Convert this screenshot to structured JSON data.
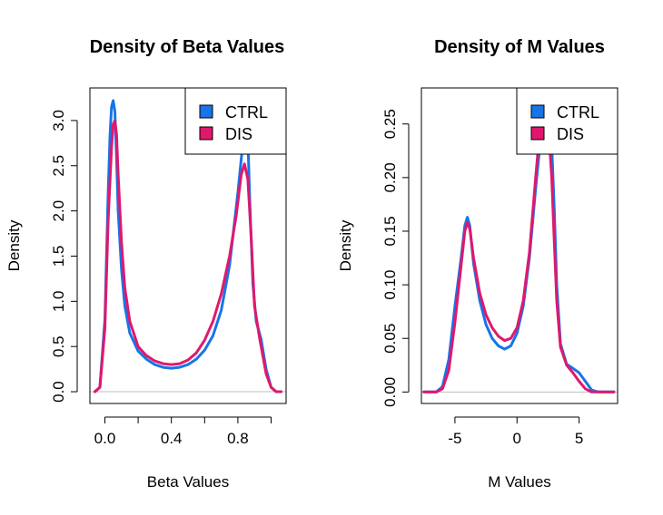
{
  "colors": {
    "CTRL": "#1874e8",
    "DIS": "#e0186c",
    "zero_line": "#bebebe"
  },
  "chart_data": [
    {
      "type": "line",
      "title": "Density of Beta Values",
      "xlabel": "Beta Values",
      "ylabel": "Density",
      "xlim": [
        -0.09,
        1.09
      ],
      "ylim": [
        -0.13,
        3.36
      ],
      "xticks": [
        0.0,
        0.2,
        0.4,
        0.6,
        0.8,
        1.0
      ],
      "xtick_labels": [
        "0.0",
        "",
        "0.4",
        "",
        "0.8",
        ""
      ],
      "yticks": [
        0.0,
        0.5,
        1.0,
        1.5,
        2.0,
        2.5,
        3.0
      ],
      "ytick_labels": [
        "0.0",
        "0.5",
        "1.0",
        "1.5",
        "2.0",
        "2.5",
        "3.0"
      ],
      "legend_position": "top-right",
      "series": [
        {
          "name": "CTRL",
          "x": [
            -0.06,
            -0.03,
            0.0,
            0.02,
            0.03,
            0.04,
            0.05,
            0.06,
            0.07,
            0.08,
            0.1,
            0.12,
            0.15,
            0.2,
            0.25,
            0.3,
            0.35,
            0.4,
            0.45,
            0.5,
            0.55,
            0.6,
            0.65,
            0.7,
            0.75,
            0.8,
            0.83,
            0.85,
            0.86,
            0.87,
            0.89,
            0.91,
            0.94,
            0.97,
            1.0,
            1.03,
            1.06
          ],
          "y": [
            0.0,
            0.05,
            0.8,
            2.2,
            2.8,
            3.15,
            3.22,
            3.1,
            2.6,
            2.0,
            1.35,
            0.95,
            0.65,
            0.45,
            0.36,
            0.3,
            0.27,
            0.26,
            0.27,
            0.3,
            0.36,
            0.46,
            0.62,
            0.9,
            1.4,
            2.2,
            2.75,
            2.95,
            2.8,
            2.2,
            1.2,
            0.78,
            0.58,
            0.25,
            0.05,
            0.0,
            0.0
          ]
        },
        {
          "name": "DIS",
          "x": [
            -0.06,
            -0.03,
            0.0,
            0.02,
            0.04,
            0.05,
            0.06,
            0.07,
            0.08,
            0.1,
            0.12,
            0.15,
            0.2,
            0.25,
            0.3,
            0.35,
            0.4,
            0.45,
            0.5,
            0.55,
            0.6,
            0.65,
            0.7,
            0.75,
            0.79,
            0.82,
            0.84,
            0.86,
            0.88,
            0.9,
            0.93,
            0.97,
            1.0,
            1.03,
            1.06
          ],
          "y": [
            0.0,
            0.05,
            0.7,
            1.9,
            2.7,
            2.95,
            3.0,
            2.85,
            2.4,
            1.65,
            1.15,
            0.78,
            0.5,
            0.4,
            0.34,
            0.31,
            0.3,
            0.31,
            0.35,
            0.43,
            0.57,
            0.78,
            1.08,
            1.5,
            1.95,
            2.4,
            2.52,
            2.35,
            1.7,
            0.95,
            0.6,
            0.2,
            0.05,
            0.0,
            0.0
          ]
        }
      ]
    },
    {
      "type": "line",
      "title": "Density of M Values",
      "xlabel": "M Values",
      "ylabel": "Density",
      "xlim": [
        -7.7,
        8.1
      ],
      "ylim": [
        -0.0107,
        0.2836
      ],
      "xticks": [
        -5,
        0,
        5
      ],
      "xtick_labels": [
        "-5",
        "0",
        "5"
      ],
      "yticks": [
        0.0,
        0.05,
        0.1,
        0.15,
        0.2,
        0.25
      ],
      "ytick_labels": [
        "0.00",
        "0.05",
        "0.10",
        "0.15",
        "0.20",
        "0.25"
      ],
      "legend_position": "top-right",
      "series": [
        {
          "name": "CTRL",
          "x": [
            -7.5,
            -6.5,
            -6.0,
            -5.5,
            -5.0,
            -4.5,
            -4.2,
            -4.0,
            -3.8,
            -3.5,
            -3.0,
            -2.5,
            -2.0,
            -1.5,
            -1.0,
            -0.5,
            0.0,
            0.5,
            1.0,
            1.5,
            1.8,
            2.0,
            2.2,
            2.4,
            2.6,
            2.8,
            3.0,
            3.2,
            3.5,
            4.0,
            4.5,
            5.0,
            5.5,
            6.0,
            6.5,
            7.0,
            7.8
          ],
          "y": [
            0.0,
            0.0,
            0.005,
            0.03,
            0.08,
            0.125,
            0.155,
            0.163,
            0.155,
            0.12,
            0.085,
            0.063,
            0.05,
            0.043,
            0.04,
            0.043,
            0.055,
            0.08,
            0.125,
            0.19,
            0.225,
            0.24,
            0.25,
            0.255,
            0.25,
            0.23,
            0.17,
            0.1,
            0.045,
            0.026,
            0.022,
            0.018,
            0.01,
            0.002,
            0.0,
            0.0,
            0.0
          ]
        },
        {
          "name": "DIS",
          "x": [
            -7.5,
            -6.5,
            -6.0,
            -5.5,
            -5.0,
            -4.5,
            -4.2,
            -4.0,
            -3.8,
            -3.5,
            -3.0,
            -2.5,
            -2.0,
            -1.5,
            -1.0,
            -0.5,
            0.0,
            0.5,
            1.0,
            1.5,
            1.8,
            2.0,
            2.2,
            2.4,
            2.6,
            2.8,
            3.0,
            3.2,
            3.5,
            4.0,
            4.5,
            5.0,
            5.5,
            6.0,
            6.5,
            7.0,
            7.8
          ],
          "y": [
            0.0,
            0.0,
            0.003,
            0.02,
            0.065,
            0.118,
            0.15,
            0.158,
            0.152,
            0.125,
            0.092,
            0.072,
            0.06,
            0.052,
            0.048,
            0.05,
            0.06,
            0.085,
            0.13,
            0.2,
            0.24,
            0.255,
            0.258,
            0.25,
            0.235,
            0.2,
            0.14,
            0.085,
            0.042,
            0.025,
            0.018,
            0.01,
            0.003,
            0.0,
            0.0,
            0.0,
            0.0
          ]
        }
      ]
    }
  ]
}
